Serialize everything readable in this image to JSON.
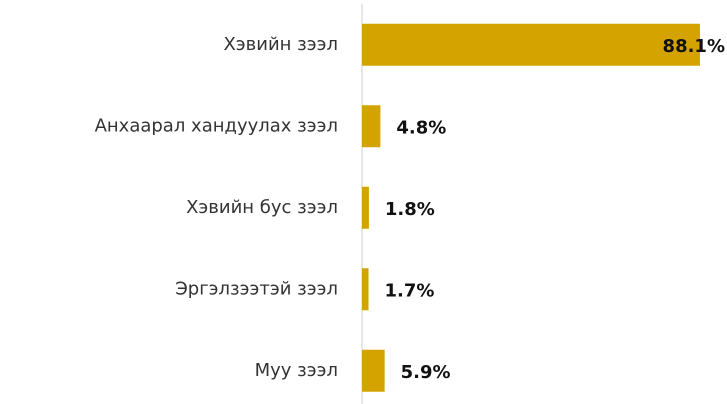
{
  "chart_data": {
    "type": "hbar",
    "categories": [
      "Хэвийн зээл",
      "Анхаарал хандуулах зээл",
      "Хэвийн бус зээл",
      "Эргэлзээтэй зээл",
      "Муу зээл"
    ],
    "values": [
      88.1,
      4.8,
      1.8,
      1.7,
      5.9
    ],
    "value_labels": [
      "88.1%",
      "4.8%",
      "1.8%",
      "1.7%",
      "5.9%"
    ],
    "color": "#d4a300"
  }
}
